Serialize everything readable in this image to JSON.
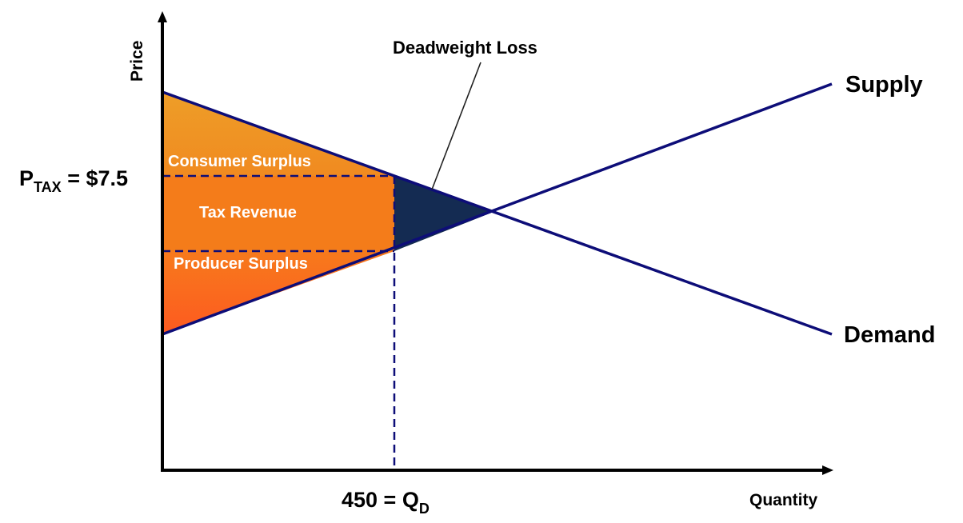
{
  "axes": {
    "y_label": "Price",
    "x_label": "Quantity"
  },
  "curves": {
    "supply": "Supply",
    "demand": "Demand"
  },
  "regions": {
    "consumer_surplus": "Consumer Surplus",
    "tax_revenue": "Tax Revenue",
    "producer_surplus": "Producer Surplus",
    "deadweight_loss": "Deadweight Loss"
  },
  "price_tax": {
    "p": "P",
    "sub": "TAX",
    "value": " = $7.5"
  },
  "quantity": {
    "value": "450 = Q",
    "sub": "D"
  },
  "colors": {
    "line": "#0d0d78",
    "consumer": "#ef9a24",
    "tax": "#f47c1a",
    "producer": "#fb5f1e",
    "deadweight": "#142b52"
  }
}
